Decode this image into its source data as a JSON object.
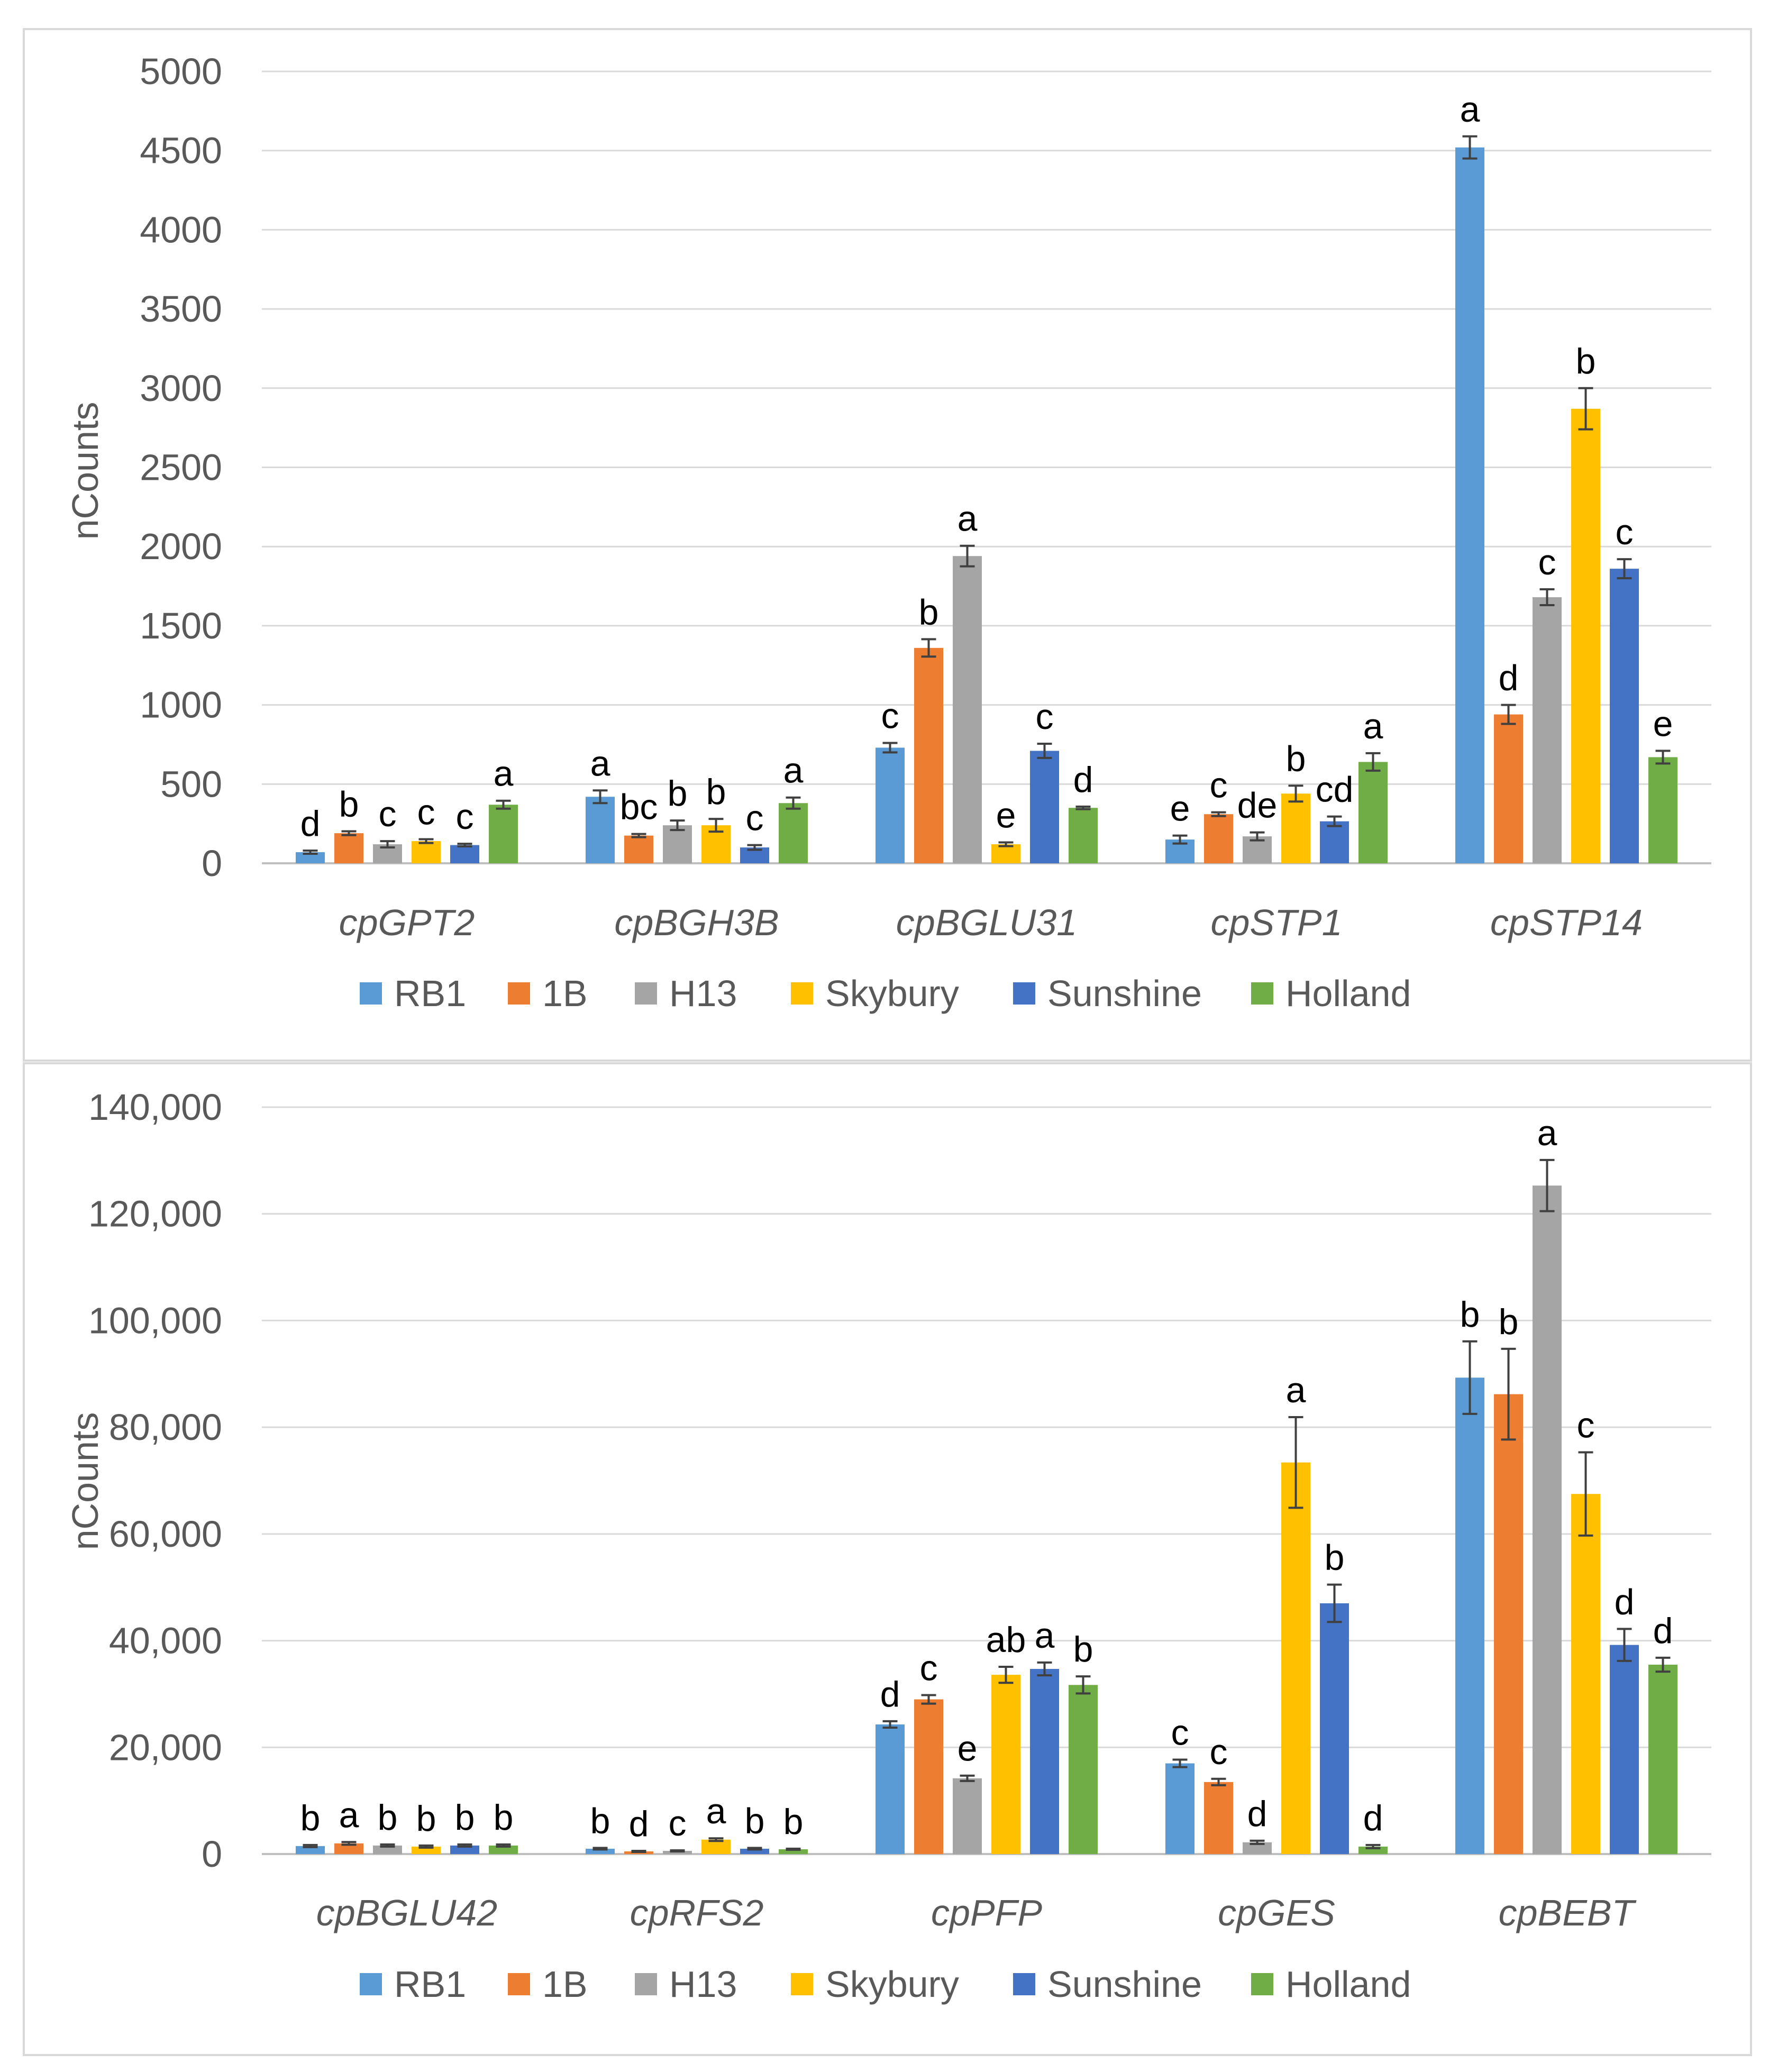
{
  "series_colors": {
    "RB1": "#5B9BD5",
    "1B": "#ED7D31",
    "H13": "#A5A5A5",
    "Skybury": "#FFC000",
    "Sunshine": "#4472C4",
    "Holland": "#70AD47"
  },
  "chart_data": [
    {
      "type": "bar",
      "ylabel": "nCounts",
      "ylim": [
        0,
        5000
      ],
      "yticks": [
        0,
        500,
        1000,
        1500,
        2000,
        2500,
        3000,
        3500,
        4000,
        4500,
        5000
      ],
      "ytick_labels": [
        "0",
        "500",
        "1000",
        "1500",
        "2000",
        "2500",
        "3000",
        "3500",
        "4000",
        "4500",
        "5000"
      ],
      "categories": [
        "cpGPT2",
        "cpBGH3B",
        "cpBGLU31",
        "cpSTP1",
        "cpSTP14"
      ],
      "legend": [
        "RB1",
        "1B",
        "H13",
        "Skybury",
        "Sunshine",
        "Holland"
      ],
      "series": [
        {
          "name": "RB1",
          "values": [
            70,
            420,
            730,
            150,
            4520
          ],
          "errors": [
            10,
            40,
            30,
            25,
            70
          ],
          "letters": [
            "d",
            "a",
            "c",
            "e",
            "a"
          ]
        },
        {
          "name": "1B",
          "values": [
            190,
            175,
            1360,
            310,
            940
          ],
          "errors": [
            12,
            10,
            55,
            12,
            60
          ],
          "letters": [
            "b",
            "bc",
            "b",
            "c",
            "d"
          ]
        },
        {
          "name": "H13",
          "values": [
            120,
            240,
            1940,
            170,
            1680
          ],
          "errors": [
            20,
            30,
            65,
            25,
            50
          ],
          "letters": [
            "c",
            "b",
            "a",
            "de",
            "c"
          ]
        },
        {
          "name": "Skybury",
          "values": [
            140,
            240,
            120,
            440,
            2870
          ],
          "errors": [
            12,
            40,
            12,
            50,
            130
          ],
          "letters": [
            "c",
            "b",
            "e",
            "b",
            "b"
          ]
        },
        {
          "name": "Sunshine",
          "values": [
            115,
            100,
            710,
            265,
            1860
          ],
          "errors": [
            8,
            15,
            45,
            30,
            60
          ],
          "letters": [
            "c",
            "c",
            "c",
            "cd",
            "c"
          ]
        },
        {
          "name": "Holland",
          "values": [
            370,
            380,
            350,
            640,
            670
          ],
          "errors": [
            25,
            35,
            8,
            55,
            40
          ],
          "letters": [
            "a",
            "a",
            "d",
            "a",
            "e"
          ]
        }
      ]
    },
    {
      "type": "bar",
      "ylabel": "nCounts",
      "ylim": [
        0,
        140000
      ],
      "yticks": [
        0,
        20000,
        40000,
        60000,
        80000,
        100000,
        120000,
        140000
      ],
      "ytick_labels": [
        "0",
        "20,000",
        "40,000",
        "60,000",
        "80,000",
        "100,000",
        "120,000",
        "140,000"
      ],
      "categories": [
        "cpBGLU42",
        "cpRFS2",
        "cpPFP",
        "cpGES",
        "cpBEBT"
      ],
      "legend": [
        "RB1",
        "1B",
        "H13",
        "Skybury",
        "Sunshine",
        "Holland"
      ],
      "series": [
        {
          "name": "RB1",
          "values": [
            1500,
            1000,
            24300,
            17000,
            89300
          ],
          "errors": [
            200,
            150,
            600,
            700,
            6800
          ],
          "letters": [
            "b",
            "b",
            "d",
            "c",
            "b"
          ]
        },
        {
          "name": "1B",
          "values": [
            2000,
            500,
            29000,
            13500,
            86200
          ],
          "errors": [
            250,
            100,
            800,
            600,
            8500
          ],
          "letters": [
            "a",
            "d",
            "c",
            "c",
            "b"
          ]
        },
        {
          "name": "H13",
          "values": [
            1600,
            600,
            14200,
            2200,
            125300
          ],
          "errors": [
            200,
            100,
            500,
            300,
            4800
          ],
          "letters": [
            "b",
            "c",
            "e",
            "d",
            "a"
          ]
        },
        {
          "name": "Skybury",
          "values": [
            1400,
            2700,
            33600,
            73400,
            67500
          ],
          "errors": [
            200,
            250,
            1500,
            8500,
            7800
          ],
          "letters": [
            "b",
            "a",
            "ab",
            "a",
            "c"
          ]
        },
        {
          "name": "Sunshine",
          "values": [
            1600,
            1000,
            34700,
            47000,
            39200
          ],
          "errors": [
            200,
            150,
            1200,
            3500,
            3000
          ],
          "letters": [
            "b",
            "b",
            "a",
            "b",
            "d"
          ]
        },
        {
          "name": "Holland",
          "values": [
            1600,
            900,
            31700,
            1400,
            35500
          ],
          "errors": [
            200,
            100,
            1600,
            300,
            1300
          ],
          "letters": [
            "b",
            "b",
            "b",
            "d",
            "d"
          ]
        }
      ]
    }
  ]
}
